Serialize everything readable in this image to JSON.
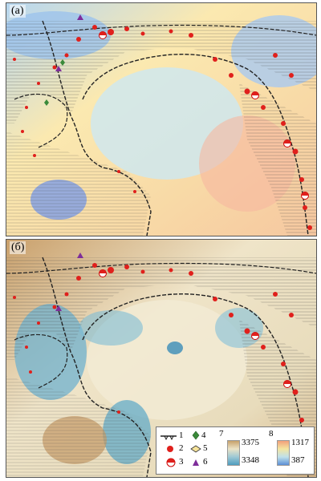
{
  "panels": [
    {
      "label": "(а)"
    },
    {
      "label": "(б)"
    }
  ],
  "legend": {
    "items": [
      {
        "num": "1",
        "icon": "subduction-line-icon"
      },
      {
        "num": "2",
        "icon": "red-dot-icon"
      },
      {
        "num": "3",
        "icon": "focal-mechanism-icon"
      },
      {
        "num": "4",
        "icon": "green-diamond-icon"
      },
      {
        "num": "5",
        "icon": "open-diamond-icon"
      },
      {
        "num": "6",
        "icon": "purple-triangle-icon"
      },
      {
        "num": "7",
        "icon": "color-ramp-brown-blue"
      },
      {
        "num": "8",
        "icon": "color-ramp-orange-blue"
      }
    ],
    "scale7": {
      "max": "3375",
      "min": "3348"
    },
    "scale8": {
      "max": "1317",
      "min": "387"
    }
  },
  "colors": {
    "ramp7": [
      "#c7a16a",
      "#ece3c7",
      "#9dc8d4",
      "#4e9dbf"
    ],
    "ramp8": [
      "#f2a07a",
      "#f4e6a0",
      "#bfe0ea",
      "#5b8fd6"
    ],
    "quake": "#e0201c"
  }
}
